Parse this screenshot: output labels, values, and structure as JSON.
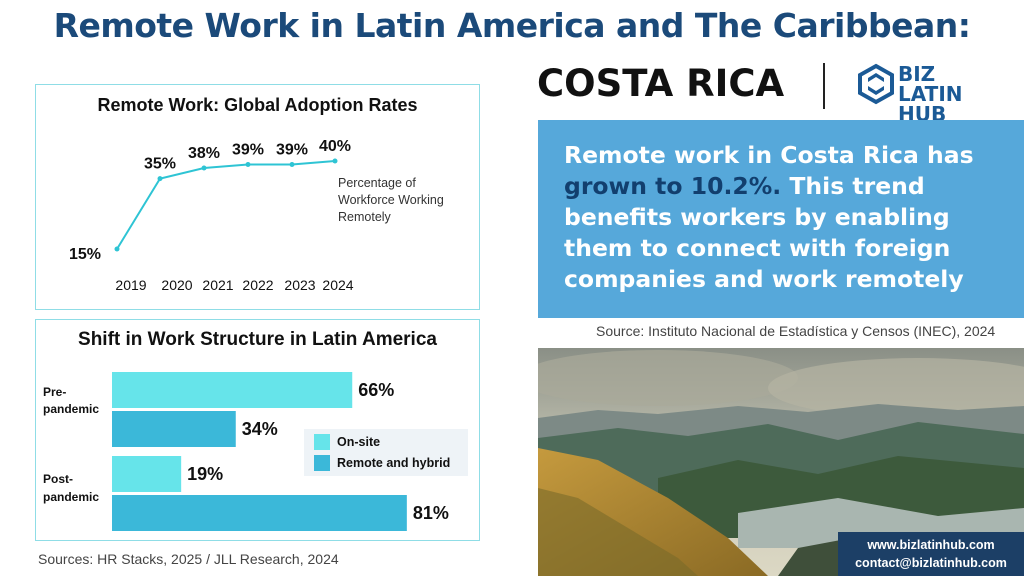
{
  "title": "Remote Work in Latin America and The Caribbean:",
  "country": "COSTA RICA",
  "logo": {
    "line1": "BIZ LATIN",
    "line2": "HUB",
    "color": "#1b5a96"
  },
  "panel1": {
    "title": "Remote Work: Global Adoption Rates"
  },
  "panel2": {
    "title": "Shift in Work Structure in Latin America"
  },
  "chart_data": [
    {
      "type": "line",
      "title": "Remote Work: Global Adoption Rates",
      "x": [
        "2019",
        "2020",
        "2021",
        "2022",
        "2023",
        "2024"
      ],
      "series": [
        {
          "values": [
            15,
            35,
            38,
            39,
            39,
            40
          ],
          "labels": [
            "15%",
            "35%",
            "38%",
            "39%",
            "39%",
            "40%"
          ],
          "color": "#2ec4d4"
        }
      ],
      "annotation": [
        "Percentage of",
        "Workforce Working",
        "Remotely"
      ],
      "grid": false
    },
    {
      "type": "bar",
      "orientation": "horizontal",
      "title": "Shift in Work Structure in Latin America",
      "categories": [
        [
          "Pre-",
          "pandemic"
        ],
        [
          "Post-",
          "pandemic"
        ]
      ],
      "series": [
        {
          "name": "On-site",
          "values": [
            66,
            19
          ],
          "labels": [
            "66%",
            "19%"
          ],
          "color": "#66e4ea"
        },
        {
          "name": "Remote and hybrid",
          "values": [
            34,
            81
          ],
          "labels": [
            "34%",
            "81%"
          ],
          "color": "#3bb8d9"
        }
      ],
      "legend": "right",
      "grid": false
    }
  ],
  "sources_left": "Sources: HR Stacks, 2025 /  JLL Research, 2024",
  "callout": {
    "before": "Remote work in Costa Rica has",
    "highlight": "grown to 10.2%.",
    "after": "This trend benefits workers by enabling them to connect with foreign companies and work remotely"
  },
  "source_right": "Source:  Instituto Nacional de Estadística y Censos (INEC), 2024",
  "contact": {
    "website": "www.bizlatinhub.com",
    "email": "contact@bizlatinhub.com"
  },
  "colors": {
    "title": "#1b4a7a",
    "callout_bg": "#56a8da",
    "callout_highlight": "#123f6e",
    "contact_bg": "#1c3f66"
  }
}
